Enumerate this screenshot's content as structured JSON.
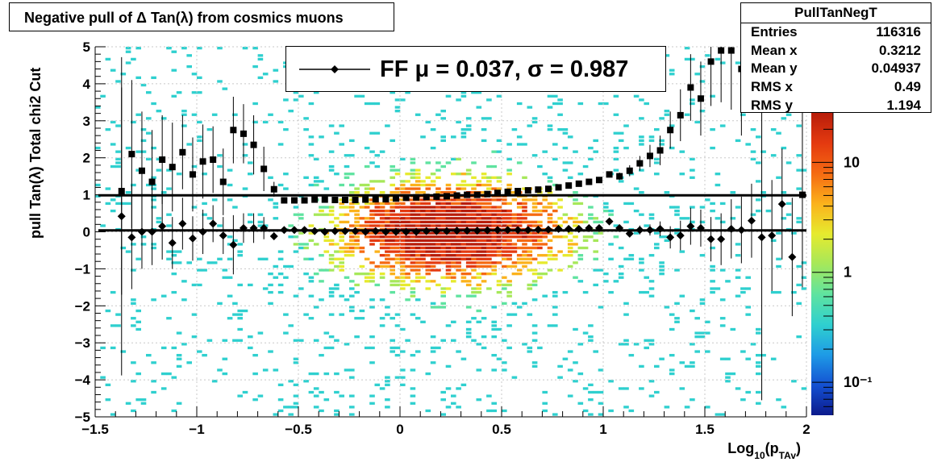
{
  "title": "Negative pull of Δ Tan(λ) from cosmics muons",
  "stats": {
    "name": "PullTanNegT",
    "rows": [
      {
        "label": "Entries",
        "value": "116316"
      },
      {
        "label": "Mean x",
        "value": "0.3212"
      },
      {
        "label": "Mean y",
        "value": "0.04937"
      },
      {
        "label": "RMS x",
        "value": "0.49"
      },
      {
        "label": "RMS y",
        "value": "1.194"
      }
    ]
  },
  "legend": {
    "text": "FF μ =  0.037, σ =   0.987"
  },
  "colors": {
    "axis": "#000000",
    "grid": "#c8c8c8",
    "palette": [
      "#0c1a8c",
      "#1451d2",
      "#1e9be6",
      "#2fd0cf",
      "#5fe3a0",
      "#a6e85a",
      "#e6ea2e",
      "#fbb21c",
      "#f56a12",
      "#e43a10",
      "#b81d0a"
    ]
  },
  "chart_data": {
    "type": "heatmap",
    "title": "Negative pull of Δ Tan(λ) from cosmics muons",
    "xlabel": "Log10(pTAv)",
    "ylabel": "pull Tan(λ)  Total chi2 Cut",
    "xlim": [
      -1.5,
      2.0
    ],
    "ylim": [
      -5,
      5
    ],
    "x_ticks": [
      "−1.5",
      "−1",
      "−0.5",
      "0",
      "0.5",
      "1",
      "1.5",
      "2"
    ],
    "y_ticks": [
      "−5",
      "−4",
      "−3",
      "−2",
      "−1",
      "0",
      "1",
      "2",
      "3",
      "4",
      "5"
    ],
    "z_scale": "log",
    "z_ticks": [
      "10",
      "1",
      "10⁻¹"
    ],
    "grid": true,
    "series": [
      {
        "name": "sigma",
        "marker": "square",
        "x": [
          -1.37,
          -1.32,
          -1.27,
          -1.22,
          -1.17,
          -1.12,
          -1.07,
          -1.02,
          -0.97,
          -0.92,
          -0.87,
          -0.82,
          -0.77,
          -0.72,
          -0.67,
          -0.62,
          -0.57,
          -0.52,
          -0.47,
          -0.42,
          -0.37,
          -0.32,
          -0.27,
          -0.22,
          -0.17,
          -0.12,
          -0.07,
          -0.02,
          0.03,
          0.08,
          0.13,
          0.18,
          0.23,
          0.28,
          0.33,
          0.38,
          0.43,
          0.48,
          0.53,
          0.58,
          0.63,
          0.68,
          0.73,
          0.78,
          0.83,
          0.88,
          0.93,
          0.98,
          1.03,
          1.08,
          1.13,
          1.18,
          1.23,
          1.28,
          1.33,
          1.38,
          1.43,
          1.48,
          1.53,
          1.58,
          1.63,
          1.68,
          1.73,
          1.78,
          1.83,
          1.88,
          1.93,
          1.98
        ],
        "y": [
          1.1,
          2.1,
          1.65,
          1.35,
          1.95,
          1.75,
          2.15,
          1.55,
          1.9,
          1.95,
          1.35,
          2.75,
          2.65,
          2.35,
          1.7,
          1.15,
          0.85,
          0.85,
          0.85,
          0.87,
          0.87,
          0.86,
          0.86,
          0.86,
          0.87,
          0.88,
          0.88,
          0.9,
          0.92,
          0.93,
          0.94,
          0.95,
          0.96,
          0.98,
          1.0,
          1.0,
          1.02,
          1.05,
          1.08,
          1.1,
          1.12,
          1.14,
          1.16,
          1.2,
          1.25,
          1.3,
          1.35,
          1.4,
          1.55,
          1.5,
          1.65,
          1.85,
          2.05,
          2.2,
          2.75,
          3.15,
          3.9,
          3.6,
          4.6,
          4.9,
          4.9,
          4.4,
          null,
          null,
          null,
          null,
          null,
          1.0
        ],
        "y_err": [
          2.8,
          2.0,
          1.6,
          1.4,
          1.2,
          1.2,
          1.0,
          1.0,
          1.0,
          0.9,
          0.9,
          0.9,
          0.8,
          0.8,
          0.6,
          0.2,
          0.05,
          0.04,
          0.04,
          0.03,
          0.03,
          0.03,
          0.03,
          0.03,
          0.03,
          0.03,
          0.03,
          0.03,
          0.03,
          0.03,
          0.03,
          0.03,
          0.03,
          0.03,
          0.03,
          0.03,
          0.03,
          0.03,
          0.03,
          0.03,
          0.03,
          0.03,
          0.04,
          0.04,
          0.04,
          0.05,
          0.05,
          0.06,
          0.08,
          0.1,
          0.15,
          0.2,
          0.3,
          0.4,
          0.5,
          0.7,
          0.9,
          1.0,
          1.2,
          1.4,
          1.6,
          1.8,
          null,
          null,
          null,
          null,
          null,
          2.5
        ]
      },
      {
        "name": "mu",
        "marker": "diamond",
        "x": [
          -1.37,
          -1.32,
          -1.27,
          -1.22,
          -1.17,
          -1.12,
          -1.07,
          -1.02,
          -0.97,
          -0.92,
          -0.87,
          -0.82,
          -0.77,
          -0.72,
          -0.67,
          -0.62,
          -0.57,
          -0.52,
          -0.47,
          -0.42,
          -0.37,
          -0.32,
          -0.27,
          -0.22,
          -0.17,
          -0.12,
          -0.07,
          -0.02,
          0.03,
          0.08,
          0.13,
          0.18,
          0.23,
          0.28,
          0.33,
          0.38,
          0.43,
          0.48,
          0.53,
          0.58,
          0.63,
          0.68,
          0.73,
          0.78,
          0.83,
          0.88,
          0.93,
          0.98,
          1.03,
          1.08,
          1.13,
          1.18,
          1.23,
          1.28,
          1.33,
          1.38,
          1.43,
          1.48,
          1.53,
          1.58,
          1.63,
          1.68,
          1.73,
          1.78,
          1.83,
          1.88,
          1.93,
          1.98
        ],
        "y": [
          0.42,
          -0.15,
          0.0,
          0.0,
          0.15,
          -0.3,
          0.22,
          -0.18,
          0.0,
          0.22,
          -0.1,
          -0.35,
          0.1,
          0.1,
          0.1,
          -0.12,
          0.05,
          0.05,
          0.05,
          0.02,
          0.0,
          0.02,
          0.02,
          0.02,
          0.0,
          0.02,
          0.0,
          0.0,
          0.0,
          0.0,
          0.02,
          0.02,
          0.02,
          0.03,
          0.03,
          0.03,
          0.04,
          0.05,
          0.05,
          0.05,
          0.05,
          0.06,
          0.06,
          0.08,
          0.08,
          0.08,
          0.1,
          0.1,
          0.28,
          0.1,
          -0.05,
          0.05,
          0.05,
          0.08,
          -0.15,
          -0.1,
          0.15,
          0.1,
          -0.2,
          -0.2,
          0.08,
          0.05,
          0.3,
          -0.15,
          -0.1,
          0.75,
          -0.68,
          null
        ],
        "y_err": [
          4.3,
          1.4,
          1.0,
          0.9,
          0.9,
          0.7,
          0.7,
          0.6,
          0.6,
          0.5,
          0.5,
          0.8,
          0.4,
          0.4,
          0.3,
          0.1,
          0.02,
          0.02,
          0.02,
          0.02,
          0.02,
          0.02,
          0.02,
          0.02,
          0.02,
          0.02,
          0.02,
          0.02,
          0.02,
          0.02,
          0.02,
          0.02,
          0.02,
          0.02,
          0.02,
          0.02,
          0.02,
          0.02,
          0.02,
          0.02,
          0.02,
          0.02,
          0.02,
          0.02,
          0.02,
          0.03,
          0.03,
          0.03,
          0.05,
          0.06,
          0.1,
          0.12,
          0.15,
          0.2,
          0.3,
          0.4,
          0.5,
          0.5,
          0.6,
          0.7,
          0.8,
          0.9,
          1.0,
          4.4,
          1.5,
          1.5,
          1.6,
          null
        ]
      }
    ],
    "fit_lines": [
      {
        "y": 0.987,
        "x_range": [
          -1.5,
          2.0
        ]
      },
      {
        "y": 0.037,
        "x_range": [
          -1.5,
          2.0
        ]
      }
    ]
  }
}
